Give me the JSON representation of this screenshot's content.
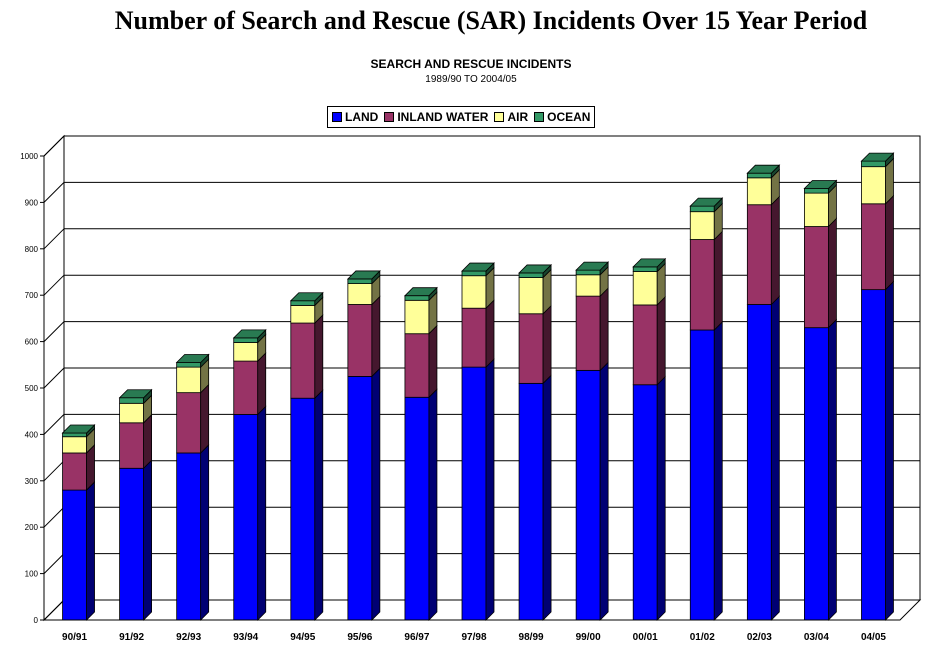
{
  "page": {
    "title": "Number of Search and Rescue (SAR) Incidents Over 15 Year Period"
  },
  "chart_data": {
    "type": "bar",
    "stacked": true,
    "title": "SEARCH AND RESCUE INCIDENTS",
    "subtitle": "1989/90 TO 2004/05",
    "xlabel": "",
    "ylabel": "",
    "ylim": [
      0,
      1000
    ],
    "yticks": [
      0,
      100,
      200,
      300,
      400,
      500,
      600,
      700,
      800,
      900,
      1000
    ],
    "grid": true,
    "legend_position": "top-center",
    "categories": [
      "90/91",
      "91/92",
      "92/93",
      "93/94",
      "94/95",
      "95/96",
      "96/97",
      "97/98",
      "98/99",
      "99/00",
      "00/01",
      "01/02",
      "02/03",
      "03/04",
      "04/05"
    ],
    "series": [
      {
        "name": "LAND",
        "color": "#0000ff",
        "values": [
          280,
          327,
          360,
          443,
          478,
          525,
          480,
          545,
          510,
          538,
          507,
          625,
          680,
          630,
          712
        ]
      },
      {
        "name": "INLAND WATER",
        "color": "#993366",
        "values": [
          80,
          98,
          130,
          115,
          162,
          155,
          137,
          127,
          150,
          160,
          172,
          195,
          215,
          218,
          185
        ]
      },
      {
        "name": "AIR",
        "color": "#ffff99",
        "values": [
          35,
          42,
          55,
          40,
          38,
          45,
          72,
          70,
          78,
          46,
          72,
          60,
          58,
          72,
          80
        ]
      },
      {
        "name": "OCEAN",
        "color": "#339966",
        "values": [
          8,
          12,
          10,
          10,
          10,
          10,
          10,
          10,
          10,
          10,
          10,
          12,
          10,
          10,
          12
        ]
      }
    ]
  }
}
